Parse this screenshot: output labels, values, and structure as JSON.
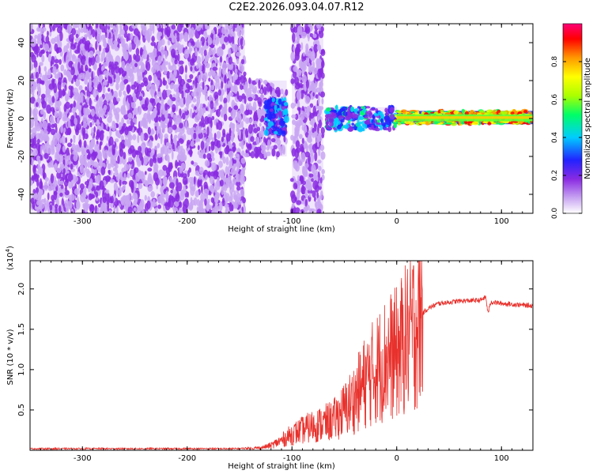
{
  "title": "C2E2.2026.093.04.07.R12",
  "chart_data": [
    {
      "type": "heatmap",
      "name": "spectrogram",
      "xlabel": "Height of straight line (km)",
      "ylabel": "Frequency (Hz)",
      "xlim": [
        -350,
        130
      ],
      "ylim": [
        -50,
        50
      ],
      "xticks": [
        -300,
        -200,
        -100,
        0,
        100
      ],
      "xtick_labels": [
        "-300",
        "-200",
        "-100",
        "0",
        "100"
      ],
      "yticks": [
        -40,
        -20,
        0,
        20,
        40
      ],
      "ytick_labels": [
        "-40",
        "-20",
        "0",
        "20",
        "40"
      ],
      "colorbar": {
        "label": "Normalized spectral amplitude",
        "range": [
          0,
          1
        ],
        "ticks": [
          0,
          0.2,
          0.4,
          0.6,
          0.8
        ],
        "tick_labels": [
          "0.0",
          "0.2",
          "0.4",
          "0.6",
          "0.8"
        ],
        "colors": [
          "#ffffff",
          "#c9a6f2",
          "#8a2be2",
          "#2222ff",
          "#00ccff",
          "#00ff66",
          "#aaff00",
          "#ffff00",
          "#ff9900",
          "#ff0000",
          "#ff0077"
        ]
      },
      "regions": [
        {
          "x_range": [
            -350,
            -145
          ],
          "f_range": [
            -50,
            50
          ],
          "level": "low-broadband"
        },
        {
          "x_range": [
            -145,
            -105
          ],
          "f_range": [
            -20,
            20
          ],
          "level": "low-broadband"
        },
        {
          "x_range": [
            -125,
            -105
          ],
          "f_range": [
            -8,
            10
          ],
          "level": "medium-band"
        },
        {
          "x_range": [
            -100,
            -70
          ],
          "f_range": [
            -50,
            50
          ],
          "level": "low-broadband"
        },
        {
          "x_range": [
            -68,
            0
          ],
          "f_range": [
            -6,
            6
          ],
          "level": "medium-narrowband"
        },
        {
          "x_range": [
            0,
            130
          ],
          "f_range": [
            -3,
            4
          ],
          "level": "high-narrowband"
        }
      ]
    },
    {
      "type": "line",
      "name": "snr",
      "xlabel": "Height of straight line (km)",
      "ylabel": "SNR (10 * v/v)",
      "yscale_label": "(x10",
      "yscale_exp": "4",
      "yscale_close": ")",
      "xlim": [
        -350,
        130
      ],
      "ylim": [
        0,
        2.35
      ],
      "xticks": [
        -300,
        -200,
        -100,
        0,
        100
      ],
      "xtick_labels": [
        "-300",
        "-200",
        "-100",
        "0",
        "100"
      ],
      "yticks": [
        0.5,
        1.0,
        1.5,
        2.0
      ],
      "ytick_labels": [
        "0.5",
        "1.0",
        "1.5",
        "2.0"
      ],
      "color": "#e8312c",
      "series": [
        {
          "name": "SNR",
          "x": [
            -350,
            -300,
            -250,
            -200,
            -150,
            -130,
            -120,
            -110,
            -100,
            -90,
            -80,
            -70,
            -60,
            -50,
            -40,
            -30,
            -20,
            -10,
            0,
            10,
            20,
            25,
            30,
            40,
            60,
            80,
            85,
            87,
            90,
            100,
            110,
            120,
            130
          ],
          "values": [
            0.02,
            0.02,
            0.02,
            0.02,
            0.02,
            0.03,
            0.06,
            0.12,
            0.2,
            0.25,
            0.3,
            0.33,
            0.38,
            0.5,
            0.65,
            0.85,
            1.0,
            1.15,
            1.2,
            1.4,
            1.6,
            1.7,
            1.76,
            1.82,
            1.85,
            1.86,
            1.9,
            1.7,
            1.84,
            1.82,
            1.81,
            1.8,
            1.79
          ]
        }
      ]
    }
  ]
}
